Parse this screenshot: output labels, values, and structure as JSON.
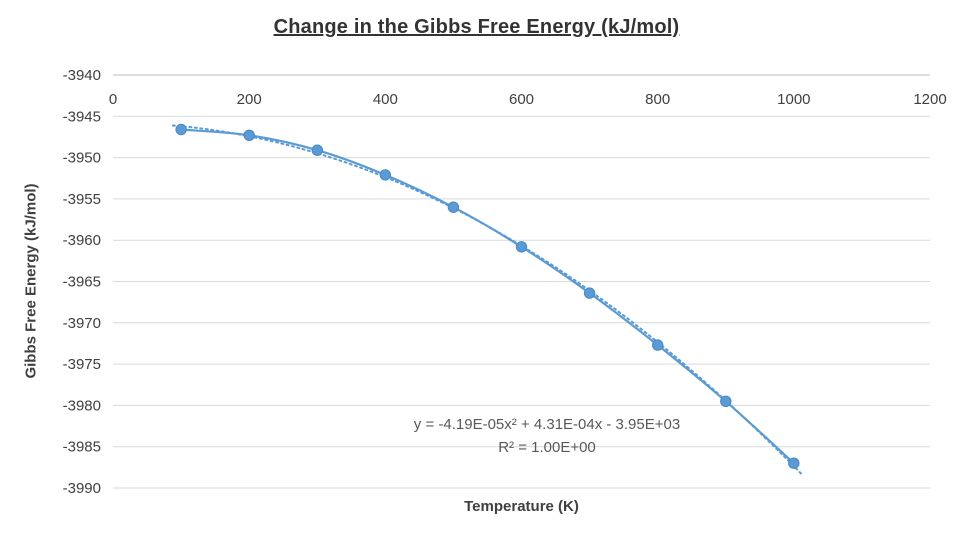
{
  "chart_data": {
    "type": "scatter",
    "title": "Change in the Gibbs Free Energy (kJ/mol)",
    "xlabel": "Temperature (K)",
    "ylabel": "Gibbs Free Energy (kJ/mol)",
    "x": [
      100,
      200,
      300,
      400,
      500,
      600,
      700,
      800,
      900,
      1000
    ],
    "y": [
      -3946.6,
      -3947.3,
      -3949.1,
      -3952.1,
      -3956.0,
      -3960.8,
      -3966.4,
      -3972.7,
      -3979.5,
      -3987.0
    ],
    "xlim": [
      0,
      1200
    ],
    "ylim": [
      -3990,
      -3940
    ],
    "x_ticks": [
      0,
      200,
      400,
      600,
      800,
      1000,
      1200
    ],
    "y_ticks": [
      -3940,
      -3945,
      -3950,
      -3955,
      -3960,
      -3965,
      -3970,
      -3975,
      -3980,
      -3985,
      -3990
    ],
    "grid": "horizontal",
    "legend": "none",
    "series_color": "#5B9BD5",
    "marker_edge_color": "#4b86c4",
    "gridline_color": "#D9D9D9",
    "axis_line_color": "#BFBFBF",
    "tick_label_color": "#404040",
    "trendline": {
      "type": "polynomial",
      "order": 2,
      "style": "dotted",
      "equation": "y = -4.19E-05x² + 4.31E-04x - 3.95E+03",
      "r_squared": "R² = 1.00E+00"
    }
  }
}
